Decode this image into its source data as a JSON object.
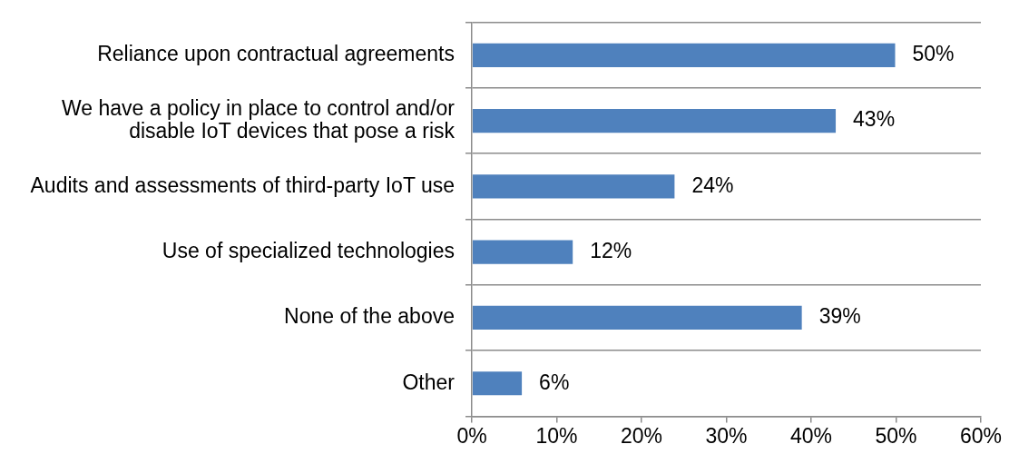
{
  "chart_data": {
    "type": "bar",
    "orientation": "horizontal",
    "categories": [
      "Reliance upon contractual agreements",
      "We have a policy in place to control and/or disable IoT devices that pose a risk",
      "Audits and assessments of third-party IoT use",
      "Use of specialized technologies",
      "None of the above",
      "Other"
    ],
    "values": [
      50,
      43,
      24,
      12,
      39,
      6
    ],
    "value_labels": [
      "50%",
      "43%",
      "24%",
      "12%",
      "39%",
      "6%"
    ],
    "color": "#4f81bd",
    "xlim": [
      0,
      60
    ],
    "xticks": [
      {
        "value": 0,
        "label": "0%"
      },
      {
        "value": 10,
        "label": "10%"
      },
      {
        "value": 20,
        "label": "20%"
      },
      {
        "value": 30,
        "label": "30%"
      },
      {
        "value": 40,
        "label": "40%"
      },
      {
        "value": 50,
        "label": "50%"
      },
      {
        "value": 60,
        "label": "60%"
      }
    ],
    "grid": "y",
    "legend": false
  }
}
